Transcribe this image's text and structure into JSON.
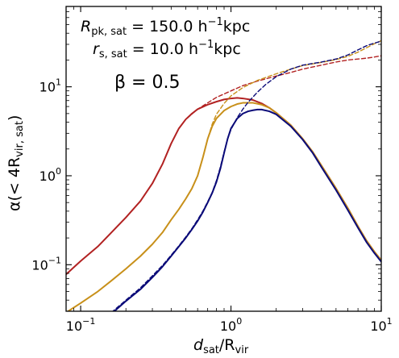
{
  "chart_data": {
    "type": "line",
    "xscale": "log",
    "yscale": "log",
    "xlim": [
      0.08,
      10
    ],
    "ylim": [
      0.03,
      80
    ],
    "xlabel_main": "d",
    "xlabel_sub": "sat",
    "xlabel_rest": "/R",
    "xlabel_sub2": "vir",
    "ylabel_pre": "α(< 4R",
    "ylabel_sub": "vir, sat",
    "ylabel_post": ")",
    "x_ticks": [
      {
        "value": 0.1,
        "base": "10",
        "exp": "−1"
      },
      {
        "value": 1,
        "base": "10",
        "exp": "0"
      },
      {
        "value": 10,
        "base": "10",
        "exp": "1"
      }
    ],
    "y_ticks": [
      {
        "value": 0.1,
        "base": "10",
        "exp": "−1"
      },
      {
        "value": 1,
        "base": "10",
        "exp": "0"
      },
      {
        "value": 10,
        "base": "10",
        "exp": "1"
      }
    ],
    "annotations": {
      "line1_sym": "R",
      "line1_sub": "pk, sat",
      "line1_val": " = 150.0 h",
      "line1_exp": "−1",
      "line1_unit": "kpc",
      "line2_sym": "r",
      "line2_sub": "s, sat",
      "line2_val": " = 10.0 h",
      "line2_exp": "−1",
      "line2_unit": "kpc",
      "beta": "β = 0.5"
    },
    "series": [
      {
        "color": "#b22222",
        "style": "solid",
        "width": 2.0,
        "x": [
          0.08,
          0.1,
          0.13,
          0.16,
          0.2,
          0.25,
          0.3,
          0.35,
          0.4,
          0.45,
          0.5,
          0.55,
          0.6,
          0.7,
          0.8,
          0.9,
          1.0,
          1.1,
          1.2,
          1.4,
          1.6,
          1.8,
          2.0,
          2.5,
          3.0,
          3.5,
          4.0,
          5.0,
          6.0,
          7.0,
          8.0,
          9.0,
          10.0
        ],
        "y": [
          0.078,
          0.11,
          0.16,
          0.23,
          0.34,
          0.52,
          0.82,
          1.35,
          2.3,
          3.4,
          4.3,
          5.0,
          5.6,
          6.3,
          6.8,
          7.2,
          7.4,
          7.5,
          7.4,
          7.1,
          6.5,
          5.8,
          5.1,
          3.7,
          2.6,
          1.85,
          1.3,
          0.72,
          0.43,
          0.27,
          0.185,
          0.14,
          0.112
        ]
      },
      {
        "color": "#b22222",
        "style": "dashed",
        "width": 1.4,
        "x": [
          0.08,
          0.1,
          0.13,
          0.16,
          0.2,
          0.25,
          0.3,
          0.35,
          0.4,
          0.45,
          0.5,
          0.6,
          0.7,
          0.8,
          1.0,
          1.2,
          1.5,
          2.0,
          2.5,
          3.0,
          4.0,
          5.0,
          6.0,
          7.0,
          8.0,
          9.0,
          10.0
        ],
        "y": [
          0.078,
          0.11,
          0.16,
          0.23,
          0.34,
          0.52,
          0.82,
          1.35,
          2.3,
          3.4,
          4.3,
          5.6,
          6.6,
          7.6,
          9.0,
          10.3,
          11.6,
          13.2,
          14.5,
          15.8,
          17.5,
          19.0,
          20.0,
          20.5,
          21.0,
          21.6,
          22.3
        ]
      },
      {
        "color": "#c8901a",
        "style": "solid",
        "width": 2.0,
        "x": [
          0.08,
          0.1,
          0.13,
          0.16,
          0.2,
          0.25,
          0.3,
          0.35,
          0.4,
          0.45,
          0.5,
          0.55,
          0.6,
          0.65,
          0.7,
          0.75,
          0.8,
          0.9,
          1.0,
          1.1,
          1.2,
          1.4,
          1.6,
          1.8,
          2.0,
          2.5,
          3.0,
          3.5,
          4.0,
          5.0,
          6.0,
          7.0,
          8.0,
          9.0,
          10.0
        ],
        "y": [
          0.029,
          0.037,
          0.05,
          0.066,
          0.09,
          0.125,
          0.17,
          0.23,
          0.32,
          0.42,
          0.55,
          0.72,
          1.0,
          1.6,
          2.6,
          3.6,
          4.4,
          5.4,
          6.0,
          6.4,
          6.6,
          6.6,
          6.3,
          5.8,
          5.1,
          3.7,
          2.6,
          1.85,
          1.3,
          0.72,
          0.43,
          0.27,
          0.185,
          0.14,
          0.112
        ]
      },
      {
        "color": "#c8901a",
        "style": "dashed",
        "width": 1.4,
        "x": [
          0.08,
          0.1,
          0.13,
          0.16,
          0.2,
          0.25,
          0.3,
          0.35,
          0.4,
          0.45,
          0.5,
          0.55,
          0.6,
          0.65,
          0.7,
          0.75,
          0.8,
          0.9,
          1.0,
          1.2,
          1.5,
          2.0,
          2.5,
          3.0,
          4.0,
          5.0,
          6.0,
          7.0,
          8.0,
          9.0,
          10.0
        ],
        "y": [
          0.029,
          0.037,
          0.05,
          0.066,
          0.09,
          0.125,
          0.17,
          0.23,
          0.32,
          0.42,
          0.55,
          0.72,
          1.0,
          1.6,
          2.6,
          3.8,
          4.9,
          6.5,
          7.9,
          9.8,
          11.8,
          14.0,
          15.8,
          17.3,
          18.8,
          20.2,
          22.0,
          24.5,
          27.5,
          30.5,
          33.0
        ]
      },
      {
        "color": "#0a0a78",
        "style": "solid",
        "width": 2.0,
        "x": [
          0.16,
          0.2,
          0.25,
          0.3,
          0.35,
          0.4,
          0.45,
          0.5,
          0.55,
          0.6,
          0.65,
          0.7,
          0.75,
          0.8,
          0.85,
          0.9,
          0.95,
          1.0,
          1.1,
          1.2,
          1.3,
          1.4,
          1.5,
          1.6,
          1.8,
          2.0,
          2.5,
          3.0,
          3.5,
          4.0,
          5.0,
          6.0,
          7.0,
          8.0,
          9.0,
          10.0
        ],
        "y": [
          0.028,
          0.039,
          0.053,
          0.072,
          0.095,
          0.125,
          0.16,
          0.2,
          0.25,
          0.31,
          0.39,
          0.5,
          0.64,
          0.85,
          1.2,
          1.8,
          2.6,
          3.4,
          4.4,
          5.0,
          5.3,
          5.45,
          5.55,
          5.55,
          5.3,
          4.9,
          3.6,
          2.55,
          1.8,
          1.25,
          0.69,
          0.41,
          0.26,
          0.178,
          0.135,
          0.108
        ]
      },
      {
        "color": "#0a0a78",
        "style": "dashed",
        "width": 1.4,
        "x": [
          0.16,
          0.2,
          0.25,
          0.3,
          0.35,
          0.4,
          0.45,
          0.5,
          0.55,
          0.6,
          0.65,
          0.7,
          0.75,
          0.8,
          0.85,
          0.9,
          0.95,
          1.0,
          1.1,
          1.2,
          1.3,
          1.5,
          1.7,
          2.0,
          2.5,
          3.0,
          4.0,
          5.0,
          6.0,
          7.0,
          8.0,
          9.0,
          10.0
        ],
        "y": [
          0.029,
          0.04,
          0.055,
          0.075,
          0.098,
          0.128,
          0.163,
          0.205,
          0.255,
          0.32,
          0.4,
          0.51,
          0.65,
          0.88,
          1.25,
          1.85,
          2.6,
          3.3,
          4.5,
          5.6,
          6.7,
          8.7,
          10.6,
          13.0,
          15.8,
          17.5,
          19.0,
          20.5,
          22.8,
          26.0,
          29.0,
          31.0,
          32.5
        ]
      }
    ]
  }
}
